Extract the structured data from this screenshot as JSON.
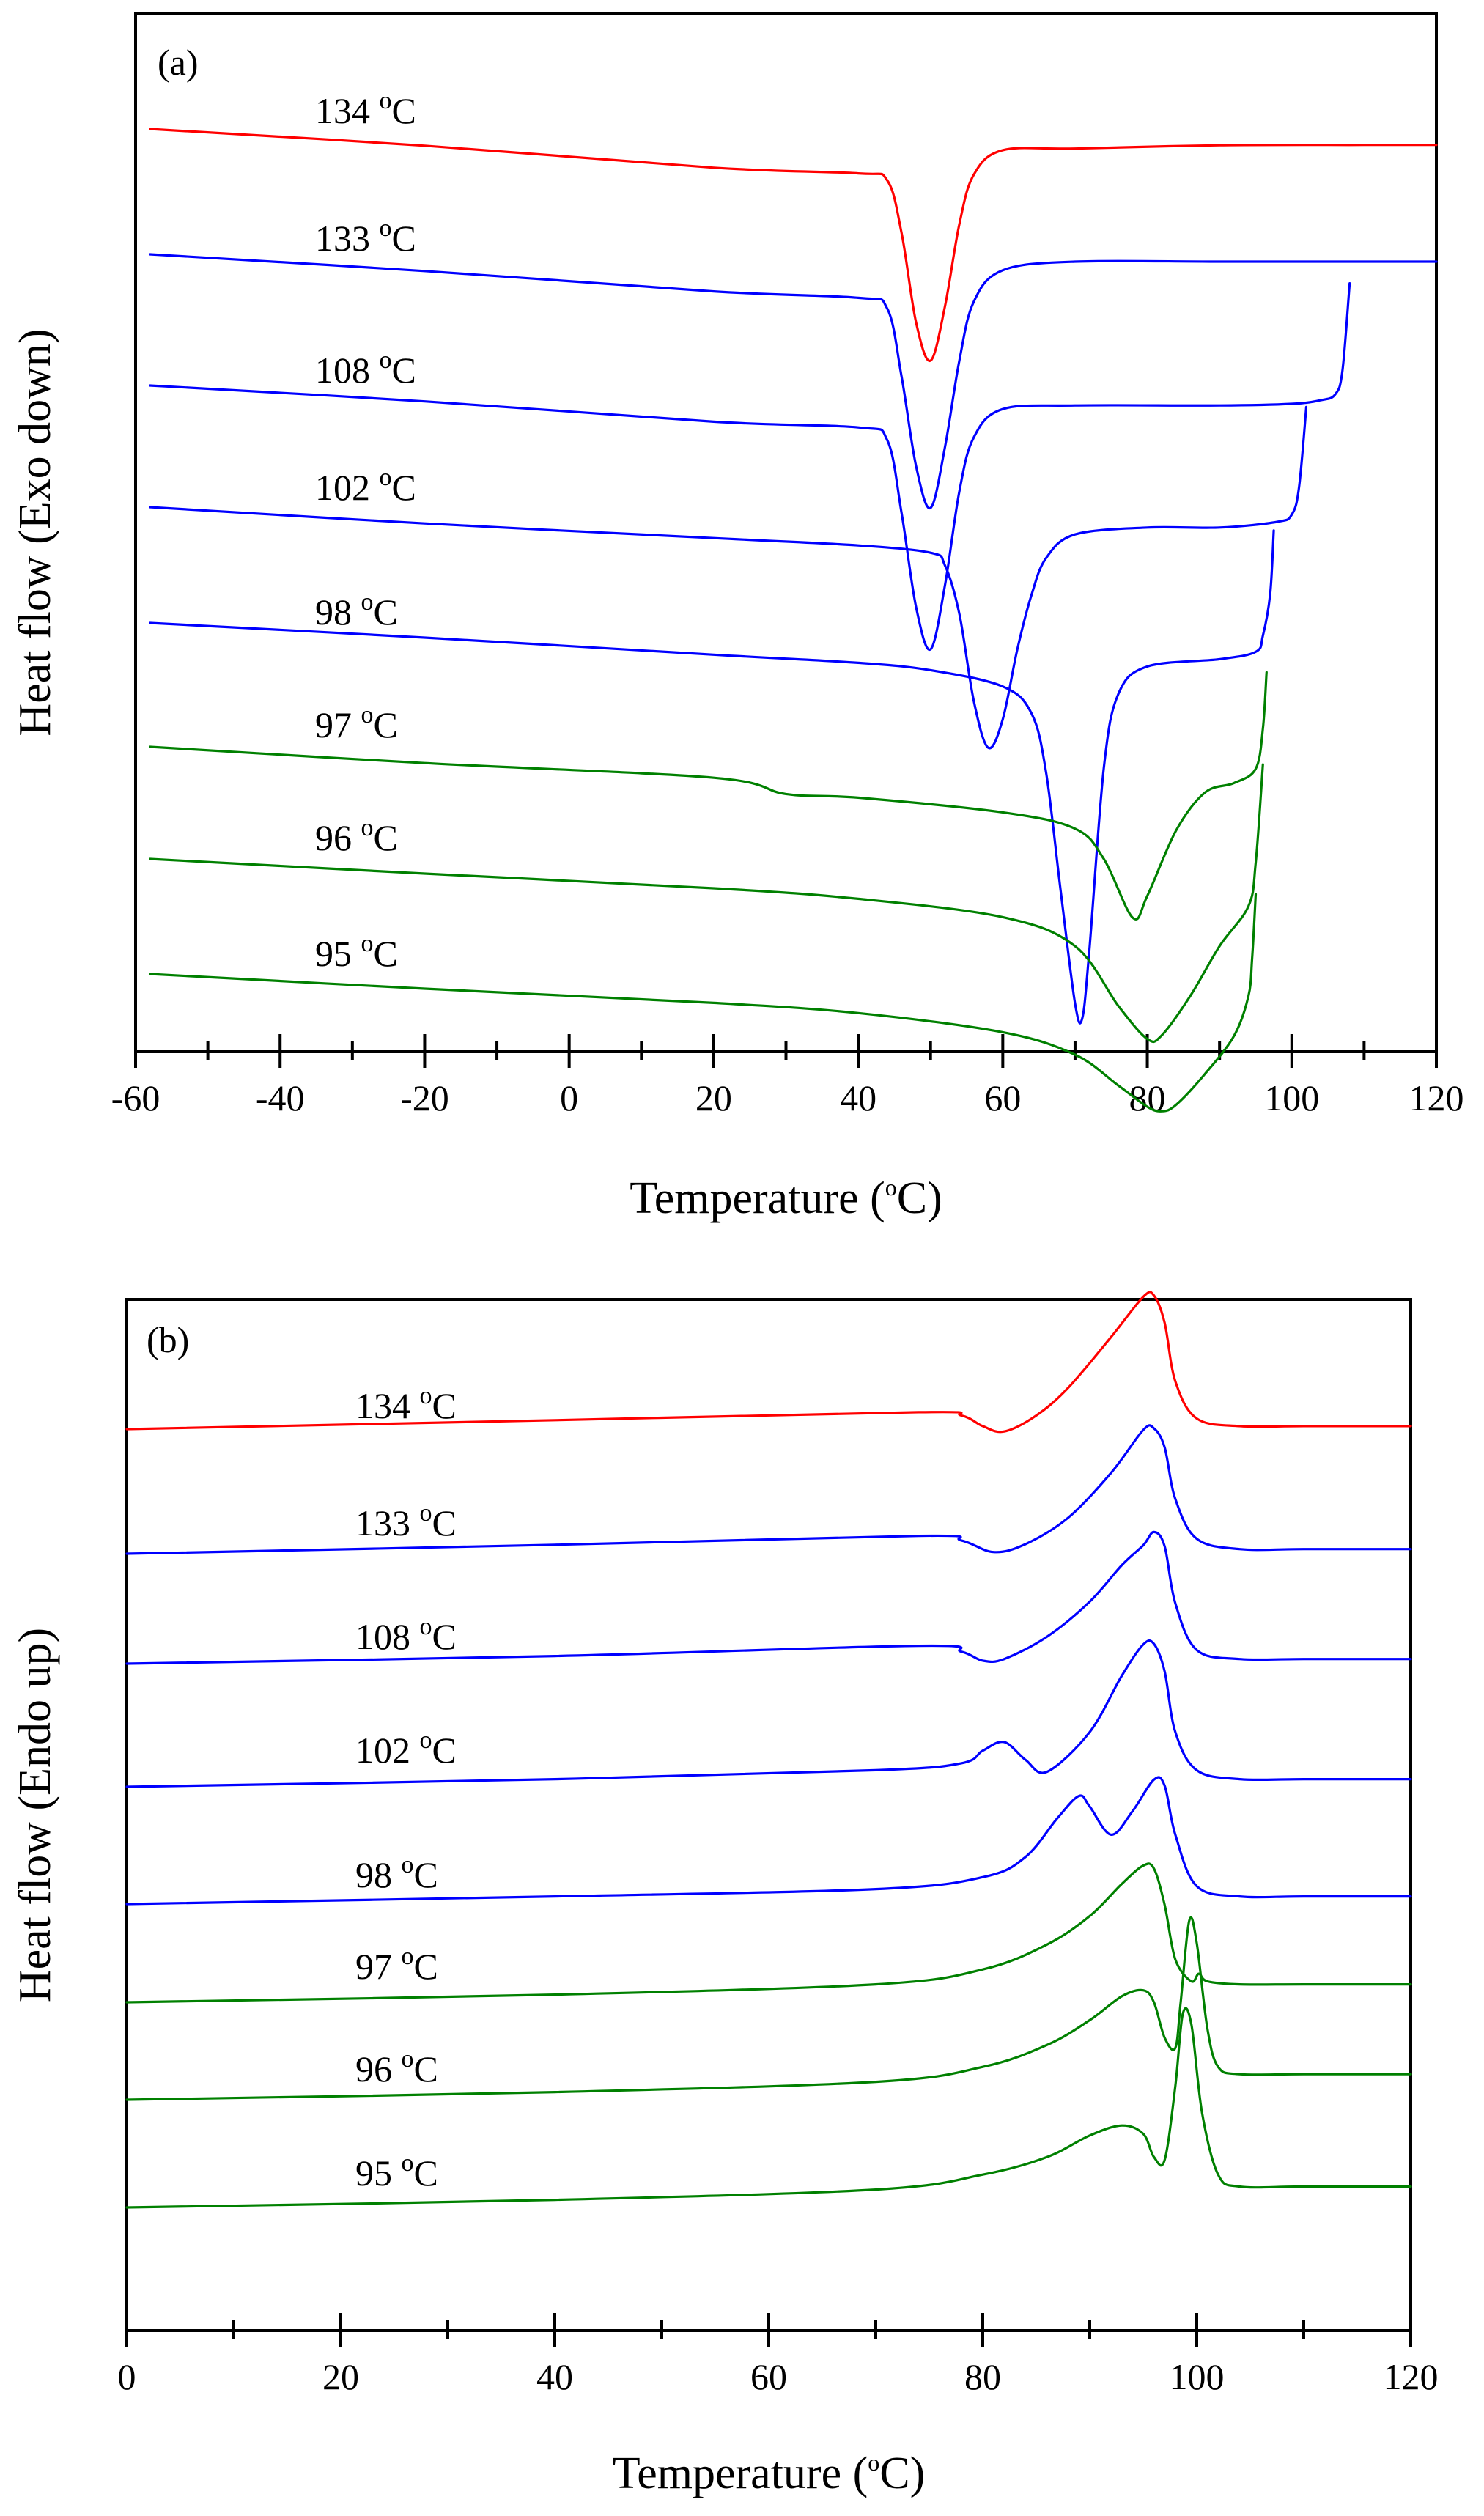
{
  "figure": {
    "background": "#ffffff"
  },
  "chart_data": [
    {
      "type": "line",
      "panel_label": "(a)",
      "xlabel": "Temperature",
      "xlabel_unit_pre": "(",
      "xlabel_unit_sup": "o",
      "xlabel_unit_post": "C)",
      "ylabel": "Heat flow (Exo down)",
      "xlim": [
        -60,
        120
      ],
      "xticks": [
        -60,
        -40,
        -20,
        0,
        20,
        40,
        60,
        80,
        100,
        120
      ],
      "xtick_labels": [
        "-60",
        "-40",
        "-20",
        "0",
        "20",
        "40",
        "60",
        "80",
        "100",
        "120"
      ],
      "y_tick_labels": "none",
      "series": [
        {
          "name": "134 °C",
          "label_num": "134",
          "label_sup": "o",
          "label_unit": "C",
          "color": "#ff0000",
          "x": [
            -58,
            -20,
            20,
            40,
            44,
            46,
            48,
            50,
            52,
            54,
            56,
            60,
            70,
            90,
            110,
            120
          ],
          "offset": [
            0.0,
            -0.0041,
            -0.0095,
            -0.0109,
            -0.0126,
            -0.0256,
            -0.0475,
            -0.0569,
            -0.0436,
            -0.0233,
            -0.0112,
            -0.0052,
            -0.0048,
            -0.004,
            -0.0039,
            -0.0039
          ]
        },
        {
          "name": "133 °C",
          "label_num": "133",
          "label_sup": "o",
          "label_unit": "C",
          "color": "#0000ff",
          "x": [
            -58,
            -20,
            20,
            40,
            44,
            46,
            48,
            50,
            52,
            54,
            56,
            60,
            70,
            90,
            110,
            120
          ],
          "offset": [
            0.0,
            -0.0041,
            -0.0091,
            -0.0107,
            -0.0133,
            -0.0301,
            -0.052,
            -0.0623,
            -0.0474,
            -0.026,
            -0.0116,
            -0.0039,
            -0.0018,
            -0.0018,
            -0.0018,
            -0.0018
          ]
        },
        {
          "name": "108 °C",
          "label_num": "108",
          "label_sup": "o",
          "label_unit": "C",
          "color": "#0000ff",
          "x": [
            -58,
            -20,
            20,
            40,
            44,
            46,
            48,
            50,
            52,
            54,
            56,
            60,
            70,
            90,
            100,
            104,
            106,
            107,
            108
          ],
          "offset": [
            0.0,
            -0.0039,
            -0.0089,
            -0.0103,
            -0.0134,
            -0.0314,
            -0.0544,
            -0.0648,
            -0.0491,
            -0.0259,
            -0.0127,
            -0.0058,
            -0.0049,
            -0.0049,
            -0.0045,
            -0.0036,
            -0.0022,
            0.0036,
            0.0251
          ]
        },
        {
          "name": "102 °C",
          "label_num": "102",
          "label_sup": "o",
          "label_unit": "C",
          "color": "#0000ff",
          "x": [
            -58,
            -20,
            20,
            40,
            50,
            52,
            54,
            56,
            58,
            60,
            62,
            64,
            66,
            70,
            80,
            90,
            98,
            100,
            101,
            102
          ],
          "offset": [
            0.0,
            -0.004,
            -0.0076,
            -0.0094,
            -0.0112,
            -0.0143,
            -0.0263,
            -0.0477,
            -0.0591,
            -0.0521,
            -0.035,
            -0.0214,
            -0.0125,
            -0.0067,
            -0.005,
            -0.005,
            -0.0036,
            -0.0018,
            0.0049,
            0.0246
          ]
        },
        {
          "name": "98 °C",
          "label_num": "98",
          "label_sup": "o",
          "label_unit": "C",
          "color": "#0000ff",
          "x": [
            -58,
            -20,
            20,
            40,
            50,
            60,
            64,
            66,
            68,
            70,
            71,
            72,
            74,
            76,
            80,
            90,
            95,
            96,
            97,
            97.5
          ],
          "offset": [
            0.0,
            -0.0036,
            -0.0078,
            -0.0098,
            -0.0116,
            -0.0156,
            -0.0223,
            -0.0368,
            -0.0656,
            -0.0934,
            -0.0971,
            -0.0799,
            -0.0353,
            -0.0174,
            -0.0107,
            -0.0089,
            -0.0071,
            -0.0031,
            0.0071,
            0.0227
          ]
        },
        {
          "name": "97 °C",
          "label_num": "97",
          "label_sup": "o",
          "label_unit": "C",
          "color": "#008000",
          "x": [
            -58,
            -20,
            20,
            30,
            40,
            60,
            70,
            74,
            78,
            80,
            84,
            88,
            92,
            95,
            96,
            96.5
          ],
          "offset": [
            0.0,
            -0.004,
            -0.0076,
            -0.0116,
            -0.0125,
            -0.0161,
            -0.0201,
            -0.0276,
            -0.042,
            -0.0366,
            -0.0205,
            -0.0112,
            -0.0089,
            -0.0054,
            0.0045,
            0.0183
          ]
        },
        {
          "name": "96 °C",
          "label_num": "96",
          "label_sup": "o",
          "label_unit": "C",
          "color": "#008000",
          "x": [
            -58,
            -20,
            20,
            40,
            60,
            70,
            76,
            80,
            82,
            86,
            90,
            94,
            95,
            96
          ],
          "offset": [
            0.0,
            -0.0036,
            -0.0072,
            -0.0098,
            -0.0143,
            -0.0214,
            -0.0361,
            -0.0442,
            -0.0433,
            -0.0335,
            -0.0214,
            -0.0116,
            -0.0009,
            0.0232
          ]
        },
        {
          "name": "95 °C",
          "label_num": "95",
          "label_sup": "o",
          "label_unit": "C",
          "color": "#008000",
          "x": [
            -58,
            -20,
            20,
            40,
            60,
            70,
            76,
            80,
            82,
            84,
            88,
            92,
            94,
            94.5,
            95
          ],
          "offset": [
            0.0,
            -0.0036,
            -0.0071,
            -0.0096,
            -0.0143,
            -0.0198,
            -0.0274,
            -0.0326,
            -0.0337,
            -0.0321,
            -0.0245,
            -0.0152,
            -0.0054,
            0.0036,
            0.0196
          ]
        }
      ]
    },
    {
      "type": "line",
      "panel_label": "(b)",
      "xlabel": "Temperature",
      "xlabel_unit_pre": "(",
      "xlabel_unit_sup": "o",
      "xlabel_unit_post": "C)",
      "ylabel": "Heat flow (Endo up)",
      "xlim": [
        0,
        120
      ],
      "xticks": [
        0,
        20,
        40,
        60,
        80,
        100,
        120
      ],
      "xtick_labels": [
        "0",
        "20",
        "40",
        "60",
        "80",
        "100",
        "120"
      ],
      "y_tick_labels": "none",
      "series": [
        {
          "name": "134 °C",
          "label_num": "134",
          "label_sup": "o",
          "label_unit": "C",
          "color": "#ff0000",
          "x": [
            0,
            40,
            74,
            78,
            80,
            82,
            85,
            88,
            92,
            95,
            96,
            97,
            98,
            100,
            104,
            110,
            120
          ],
          "offset": [
            0.0,
            0.0027,
            0.0051,
            0.0041,
            0.0009,
            -0.0007,
            0.0041,
            0.0125,
            0.0278,
            0.0399,
            0.0403,
            0.0321,
            0.0144,
            0.0032,
            0.0009,
            0.0009,
            0.0009
          ]
        },
        {
          "name": "133 °C",
          "label_num": "133",
          "label_sup": "o",
          "label_unit": "C",
          "color": "#0000ff",
          "x": [
            0,
            40,
            74,
            78,
            81,
            84,
            88,
            92,
            95,
            96,
            97,
            98,
            100,
            104,
            110,
            120
          ],
          "offset": [
            0.0,
            0.0027,
            0.0054,
            0.004,
            0.0005,
            0.0029,
            0.0109,
            0.0244,
            0.0373,
            0.0378,
            0.0321,
            0.0165,
            0.0045,
            0.0014,
            0.0014,
            0.0014
          ]
        },
        {
          "name": "108 °C",
          "label_num": "108",
          "label_sup": "o",
          "label_unit": "C",
          "color": "#0000ff",
          "x": [
            0,
            40,
            74,
            78,
            80,
            82,
            86,
            90,
            93,
            95,
            96,
            97,
            98,
            100,
            104,
            110,
            120
          ],
          "offset": [
            0.0,
            0.0023,
            0.0054,
            0.0036,
            0.0009,
            0.0014,
            0.0081,
            0.0187,
            0.0297,
            0.0357,
            0.0397,
            0.0354,
            0.0182,
            0.0041,
            0.0014,
            0.0014,
            0.0014
          ]
        },
        {
          "name": "102 °C",
          "label_num": "102",
          "label_sup": "o",
          "label_unit": "C",
          "color": "#0000ff",
          "x": [
            0,
            40,
            70,
            78,
            80,
            82,
            84,
            86,
            90,
            93,
            95,
            96,
            97,
            98,
            100,
            104,
            110,
            120
          ],
          "offset": [
            0.0,
            0.0023,
            0.005,
            0.0071,
            0.0109,
            0.0135,
            0.0081,
            0.0045,
            0.0165,
            0.0335,
            0.0429,
            0.0431,
            0.0348,
            0.0165,
            0.005,
            0.0023,
            0.0023,
            0.0023
          ]
        },
        {
          "name": "98 °C",
          "label_num": "98",
          "label_sup": "o",
          "label_unit": "C",
          "color": "#0000ff",
          "x": [
            0,
            40,
            70,
            80,
            84,
            87,
            89,
            90,
            92,
            94,
            96,
            97,
            98,
            100,
            104,
            110,
            120
          ],
          "offset": [
            0.0,
            0.0023,
            0.0045,
            0.0081,
            0.0142,
            0.026,
            0.0326,
            0.0294,
            0.0209,
            0.028,
            0.0375,
            0.0357,
            0.0209,
            0.0054,
            0.0023,
            0.0023,
            0.0023
          ]
        },
        {
          "name": "97 °C",
          "label_num": "97",
          "label_sup": "o",
          "label_unit": "C",
          "color": "#008000",
          "x": [
            0,
            40,
            70,
            80,
            86,
            90,
            93,
            95,
            96,
            97,
            98,
            99.5,
            100.2,
            101,
            104,
            110,
            120
          ],
          "offset": [
            0.0,
            0.0023,
            0.0054,
            0.0099,
            0.0174,
            0.026,
            0.0357,
            0.0412,
            0.0403,
            0.0294,
            0.0129,
            0.0063,
            0.0086,
            0.0063,
            0.0054,
            0.0054,
            0.0054
          ]
        },
        {
          "name": "96 °C",
          "label_num": "96",
          "label_sup": "o",
          "label_unit": "C",
          "color": "#008000",
          "x": [
            0,
            40,
            70,
            80,
            86,
            90,
            93,
            95,
            96,
            97,
            98,
            98.5,
            99.3,
            100,
            101,
            102,
            104,
            110,
            120
          ],
          "offset": [
            0.0,
            0.0023,
            0.0054,
            0.0099,
            0.0165,
            0.024,
            0.0312,
            0.033,
            0.0294,
            0.0187,
            0.0156,
            0.0294,
            0.054,
            0.0473,
            0.0214,
            0.0099,
            0.0077,
            0.0077,
            0.0077
          ]
        },
        {
          "name": "95 °C",
          "label_num": "95",
          "label_sup": "o",
          "label_unit": "C",
          "color": "#008000",
          "x": [
            0,
            40,
            70,
            80,
            86,
            90,
            93,
            95,
            96,
            97,
            98,
            98.7,
            99.5,
            100.5,
            102,
            104,
            110,
            120
          ],
          "offset": [
            0.0,
            0.0023,
            0.0054,
            0.0099,
            0.0152,
            0.0217,
            0.0247,
            0.0222,
            0.0152,
            0.0143,
            0.0366,
            0.0584,
            0.0552,
            0.0285,
            0.0099,
            0.0063,
            0.0063,
            0.0063
          ]
        }
      ]
    }
  ]
}
